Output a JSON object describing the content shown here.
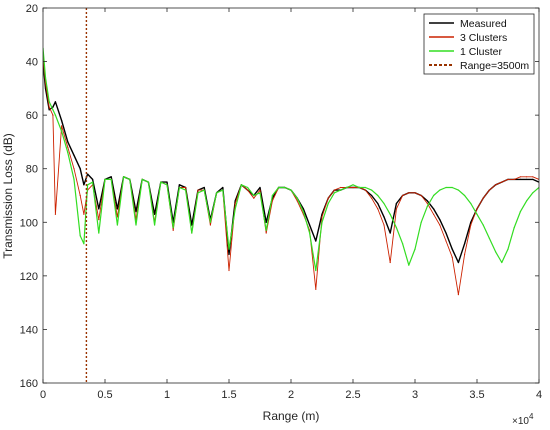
{
  "chart_data": {
    "type": "line",
    "title": "",
    "xlabel": "Range (m)",
    "ylabel": "Transmission Loss (dB)",
    "x_multiplier_label": "×10",
    "x_multiplier_exponent": "4",
    "xlim": [
      0,
      40000
    ],
    "ylim": [
      20,
      160
    ],
    "y_reversed": true,
    "grid": false,
    "legend_position": "top-right",
    "x_ticks": [
      0,
      5000,
      10000,
      15000,
      20000,
      25000,
      30000,
      35000,
      40000
    ],
    "x_tick_labels": [
      "0",
      "0.5",
      "1",
      "1.5",
      "2",
      "2.5",
      "3",
      "3.5",
      "4"
    ],
    "y_ticks": [
      20,
      40,
      60,
      80,
      100,
      120,
      140,
      160
    ],
    "y_tick_labels": [
      "20",
      "40",
      "60",
      "80",
      "100",
      "120",
      "140",
      "160"
    ],
    "series": [
      {
        "name": "Measured",
        "color": "#000000",
        "style": "solid",
        "x": [
          0,
          200,
          500,
          800,
          1000,
          1500,
          2000,
          2500,
          3000,
          3300,
          3600,
          4000,
          4500,
          5000,
          5500,
          6000,
          6500,
          7000,
          7500,
          8000,
          8500,
          9000,
          9500,
          10000,
          10500,
          11000,
          11500,
          12000,
          12500,
          13000,
          13500,
          14000,
          14500,
          15000,
          15500,
          16000,
          16500,
          17000,
          17500,
          18000,
          18500,
          19000,
          19500,
          20000,
          20500,
          21000,
          21500,
          22000,
          22500,
          23000,
          23500,
          24000,
          24500,
          25000,
          25500,
          26000,
          26500,
          27000,
          27500,
          28000,
          28500,
          29000,
          29500,
          30000,
          30500,
          31000,
          31500,
          32000,
          32500,
          33000,
          33500,
          34000,
          34500,
          35000,
          35500,
          36000,
          36500,
          37000,
          37500,
          38000,
          38500,
          39000,
          39500,
          40000
        ],
        "y": [
          40,
          50,
          58,
          57,
          55,
          62,
          70,
          75,
          80,
          86,
          82,
          84,
          95,
          84,
          83,
          95,
          83,
          84,
          96,
          84,
          85,
          97,
          85,
          85,
          100,
          86,
          87,
          101,
          88,
          87,
          99,
          89,
          87,
          112,
          92,
          86,
          88,
          90,
          87,
          100,
          91,
          87,
          87,
          88,
          91,
          95,
          101,
          107,
          97,
          91,
          88,
          88,
          87,
          87,
          87,
          88,
          90,
          93,
          98,
          104,
          93,
          90,
          89,
          89,
          90,
          92,
          95,
          99,
          104,
          110,
          115,
          108,
          100,
          95,
          91,
          88,
          86,
          85,
          84,
          84,
          84,
          84,
          84,
          85
        ]
      },
      {
        "name": "3 Clusters",
        "color": "#cc2200",
        "style": "solid",
        "x": [
          0,
          200,
          500,
          800,
          1000,
          1500,
          2000,
          2500,
          3000,
          3300,
          3600,
          4000,
          4500,
          5000,
          5500,
          6000,
          6500,
          7000,
          7500,
          8000,
          8500,
          9000,
          9500,
          10000,
          10500,
          11000,
          11500,
          12000,
          12500,
          13000,
          13500,
          14000,
          14500,
          15000,
          15500,
          16000,
          16500,
          17000,
          17500,
          18000,
          18500,
          19000,
          19500,
          20000,
          20500,
          21000,
          21500,
          22000,
          22500,
          23000,
          23500,
          24000,
          24500,
          25000,
          25500,
          26000,
          26500,
          27000,
          27500,
          28000,
          28500,
          29000,
          29500,
          30000,
          30500,
          31000,
          31500,
          32000,
          32500,
          33000,
          33500,
          34000,
          34500,
          35000,
          35500,
          36000,
          36500,
          37000,
          37500,
          38000,
          38500,
          39000,
          39500,
          40000
        ],
        "y": [
          38,
          48,
          57,
          60,
          97,
          64,
          72,
          80,
          90,
          97,
          88,
          86,
          99,
          84,
          84,
          98,
          83,
          84,
          99,
          84,
          85,
          100,
          85,
          86,
          103,
          87,
          87,
          104,
          88,
          88,
          101,
          89,
          88,
          118,
          93,
          86,
          88,
          91,
          88,
          104,
          92,
          87,
          87,
          88,
          92,
          97,
          103,
          125,
          98,
          91,
          88,
          87,
          87,
          87,
          87,
          88,
          91,
          95,
          101,
          115,
          95,
          90,
          89,
          89,
          90,
          93,
          97,
          101,
          107,
          113,
          127,
          112,
          101,
          95,
          91,
          88,
          86,
          85,
          84,
          84,
          83,
          83,
          83,
          84
        ]
      },
      {
        "name": "1 Cluster",
        "color": "#33dd22",
        "style": "solid",
        "x": [
          0,
          200,
          500,
          800,
          1000,
          1500,
          2000,
          2500,
          3000,
          3300,
          3600,
          4000,
          4500,
          5000,
          5500,
          6000,
          6500,
          7000,
          7500,
          8000,
          8500,
          9000,
          9500,
          10000,
          10500,
          11000,
          11500,
          12000,
          12500,
          13000,
          13500,
          14000,
          14500,
          15000,
          15500,
          16000,
          16500,
          17000,
          17500,
          18000,
          18500,
          19000,
          19500,
          20000,
          20500,
          21000,
          21500,
          22000,
          22500,
          23000,
          23500,
          24000,
          24500,
          25000,
          25500,
          26000,
          26500,
          27000,
          27500,
          28000,
          28500,
          29000,
          29500,
          30000,
          30500,
          31000,
          31500,
          32000,
          32500,
          33000,
          33500,
          34000,
          34500,
          35000,
          35500,
          36000,
          36500,
          37000,
          37500,
          38000,
          38500,
          39000,
          39500,
          40000
        ],
        "y": [
          35,
          46,
          55,
          58,
          60,
          66,
          74,
          84,
          105,
          108,
          86,
          85,
          104,
          84,
          84,
          101,
          83,
          84,
          101,
          84,
          85,
          101,
          85,
          86,
          102,
          87,
          88,
          104,
          89,
          88,
          100,
          89,
          88,
          110,
          95,
          86,
          87,
          90,
          89,
          103,
          90,
          87,
          87,
          88,
          91,
          96,
          104,
          118,
          100,
          93,
          89,
          88,
          87,
          86,
          87,
          87,
          88,
          90,
          93,
          97,
          102,
          108,
          116,
          110,
          100,
          94,
          90,
          88,
          87,
          87,
          88,
          90,
          93,
          97,
          101,
          106,
          111,
          115,
          110,
          102,
          96,
          92,
          89,
          87
        ]
      },
      {
        "name": "Range=3500m",
        "color": "#993300",
        "style": "dotted",
        "vertical_x": 3500
      }
    ]
  }
}
